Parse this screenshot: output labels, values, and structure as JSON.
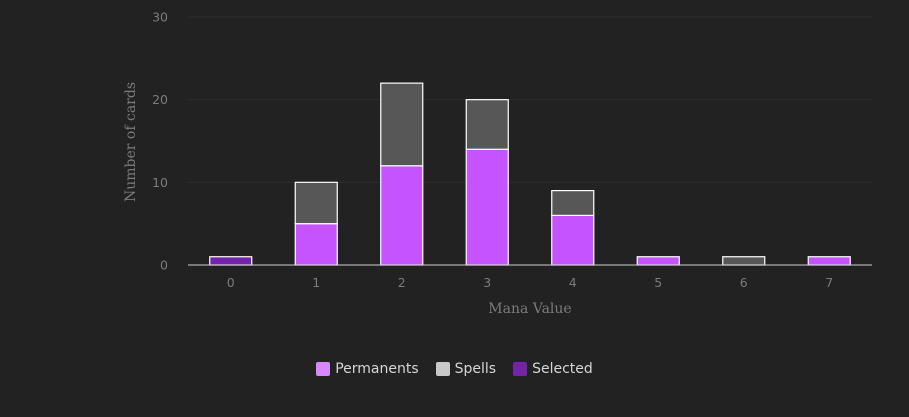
{
  "chart_data": {
    "type": "bar",
    "stacked": true,
    "categories": [
      "0",
      "1",
      "2",
      "3",
      "4",
      "5",
      "6",
      "7"
    ],
    "series": [
      {
        "name": "Permanents",
        "values": [
          0,
          5,
          12,
          14,
          6,
          1,
          0,
          1
        ],
        "color": "#c553ff",
        "legend_color": "#d987ff"
      },
      {
        "name": "Spells",
        "values": [
          0,
          5,
          10,
          6,
          3,
          0,
          1,
          0
        ],
        "color": "#575757",
        "legend_color": "#c8c8c8"
      },
      {
        "name": "Selected",
        "values": [
          1,
          0,
          0,
          0,
          0,
          0,
          0,
          0
        ],
        "color": "#7424a8",
        "legend_color": "#7424a8"
      }
    ],
    "xlabel": "Mana Value",
    "ylabel": "Number of cards",
    "ylim": [
      0,
      30
    ],
    "yticks": [
      "0",
      "10",
      "20",
      "30"
    ],
    "grid": true,
    "legend_position": "bottom"
  }
}
